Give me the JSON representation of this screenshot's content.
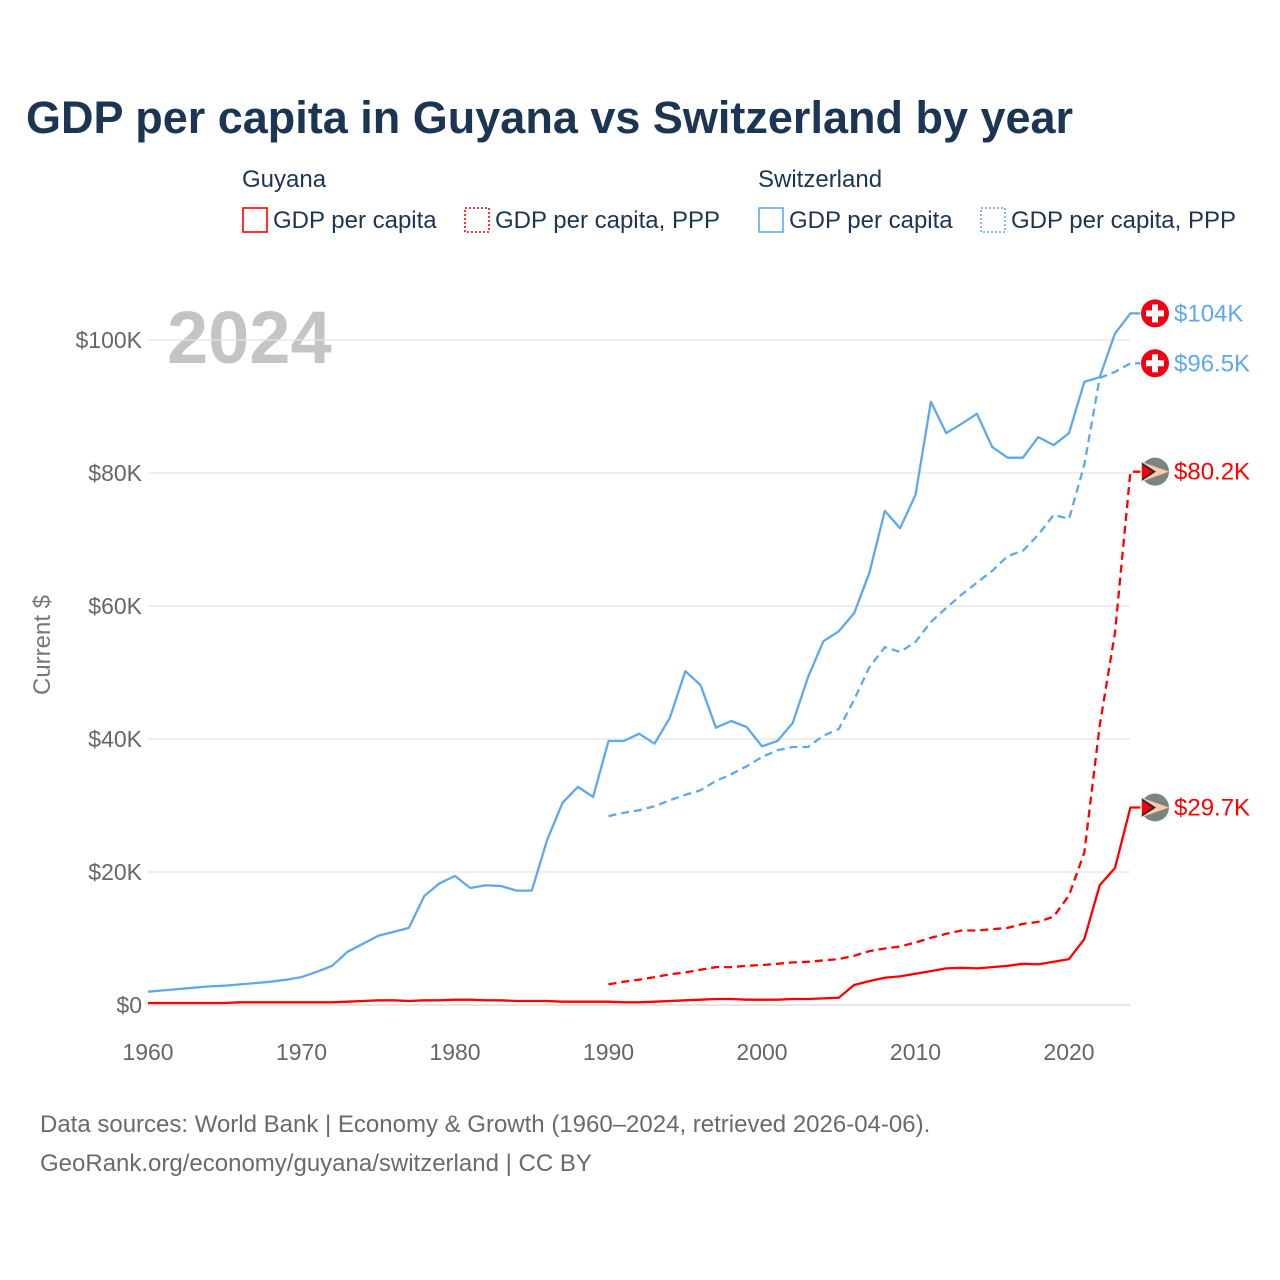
{
  "title": "GDP per capita in Guyana vs Switzerland by year",
  "year_watermark": "2024",
  "legend": {
    "groups": [
      {
        "name": "Guyana",
        "items": [
          "GDP per capita",
          "GDP per capita, PPP"
        ],
        "color": "#ff0000"
      },
      {
        "name": "Switzerland",
        "items": [
          "GDP per capita",
          "GDP per capita, PPP"
        ],
        "color": "#5fa8ec"
      }
    ]
  },
  "footer": {
    "line1": "Data sources: World Bank | Economy & Growth (1960–2024, retrieved 2026-04-06).",
    "line2": "GeoRank.org/economy/guyana/switzerland | CC BY"
  },
  "chart_data": {
    "type": "line",
    "title": "GDP per capita in Guyana vs Switzerland by year",
    "xlabel": "",
    "ylabel": "Current $",
    "xlim": [
      1960,
      2024
    ],
    "ylim": [
      0,
      100000
    ],
    "x_ticks": [
      1960,
      1970,
      1980,
      1990,
      2000,
      2010,
      2020
    ],
    "x_tick_labels": [
      "1960",
      "1970",
      "1980",
      "1990",
      "2000",
      "2010",
      "2020"
    ],
    "y_ticks": [
      0,
      20000,
      40000,
      60000,
      80000,
      100000
    ],
    "y_tick_labels": [
      "$0",
      "$20K",
      "$40K",
      "$60K",
      "$80K",
      "$100K"
    ],
    "grid": true,
    "legend_position": "top",
    "series": [
      {
        "name": "Switzerland GDP per capita",
        "country": "Switzerland",
        "color": "#5fa8ec",
        "dashed": false,
        "flag": "switzerland-flag",
        "end_label": "$104K",
        "start": 1960,
        "values_k": [
          2.0,
          2.2,
          2.4,
          2.6,
          2.8,
          2.9,
          3.1,
          3.3,
          3.5,
          3.8,
          4.2,
          5.0,
          5.9,
          8.0,
          9.2,
          10.4,
          11.0,
          11.6,
          16.4,
          18.3,
          19.4,
          17.6,
          18.0,
          17.9,
          17.2,
          17.2,
          24.8,
          30.4,
          32.8,
          31.3,
          39.7,
          39.7,
          40.8,
          39.3,
          43.2,
          50.2,
          48.1,
          41.7,
          42.7,
          41.8,
          38.9,
          39.7,
          42.4,
          49.3,
          54.7,
          56.2,
          58.9,
          65.0,
          74.3,
          71.7,
          76.7,
          90.7,
          86.0,
          87.4,
          88.9,
          83.9,
          82.3,
          82.3,
          85.4,
          84.2,
          86.0,
          93.7,
          94.4,
          101.0,
          104.0
        ]
      },
      {
        "name": "Switzerland GDP per capita, PPP",
        "country": "Switzerland",
        "color": "#5fa8ec",
        "dashed": true,
        "flag": "switzerland-flag",
        "end_label": "$96.5K",
        "start": 1990,
        "values_k": [
          28.4,
          28.9,
          29.3,
          29.9,
          30.8,
          31.6,
          32.3,
          33.7,
          34.7,
          35.9,
          37.3,
          38.3,
          38.8,
          38.8,
          40.5,
          41.5,
          45.9,
          50.8,
          53.8,
          53.1,
          54.6,
          57.6,
          59.7,
          61.7,
          63.5,
          65.3,
          67.5,
          68.3,
          70.7,
          73.7,
          73.1,
          81.2,
          94.3,
          95.2,
          96.5
        ]
      },
      {
        "name": "Guyana GDP per capita, PPP",
        "country": "Guyana",
        "color": "#ff0000",
        "dashed": true,
        "flag": "guyana-flag",
        "end_label": "$80.2K",
        "start": 1990,
        "values_k": [
          3.1,
          3.5,
          3.8,
          4.2,
          4.6,
          4.9,
          5.3,
          5.7,
          5.7,
          5.9,
          6.0,
          6.2,
          6.4,
          6.5,
          6.7,
          6.9,
          7.4,
          8.1,
          8.5,
          8.8,
          9.4,
          10.1,
          10.7,
          11.2,
          11.2,
          11.4,
          11.6,
          12.2,
          12.5,
          13.3,
          16.5,
          22.9,
          42.0,
          56.0,
          80.2
        ]
      },
      {
        "name": "Guyana GDP per capita",
        "country": "Guyana",
        "color": "#ff0000",
        "dashed": false,
        "flag": "guyana-flag",
        "end_label": "$29.7K",
        "start": 1960,
        "values_k": [
          0.3,
          0.3,
          0.3,
          0.3,
          0.3,
          0.3,
          0.4,
          0.4,
          0.4,
          0.4,
          0.4,
          0.4,
          0.4,
          0.5,
          0.6,
          0.7,
          0.7,
          0.6,
          0.7,
          0.7,
          0.8,
          0.8,
          0.7,
          0.7,
          0.6,
          0.6,
          0.6,
          0.5,
          0.5,
          0.5,
          0.5,
          0.4,
          0.4,
          0.5,
          0.6,
          0.7,
          0.8,
          0.9,
          0.9,
          0.8,
          0.8,
          0.8,
          0.9,
          0.9,
          1.0,
          1.1,
          3.0,
          3.6,
          4.1,
          4.3,
          4.7,
          5.1,
          5.5,
          5.6,
          5.5,
          5.7,
          5.9,
          6.2,
          6.1,
          6.5,
          6.9,
          9.9,
          18.0,
          20.6,
          29.7
        ]
      }
    ]
  }
}
